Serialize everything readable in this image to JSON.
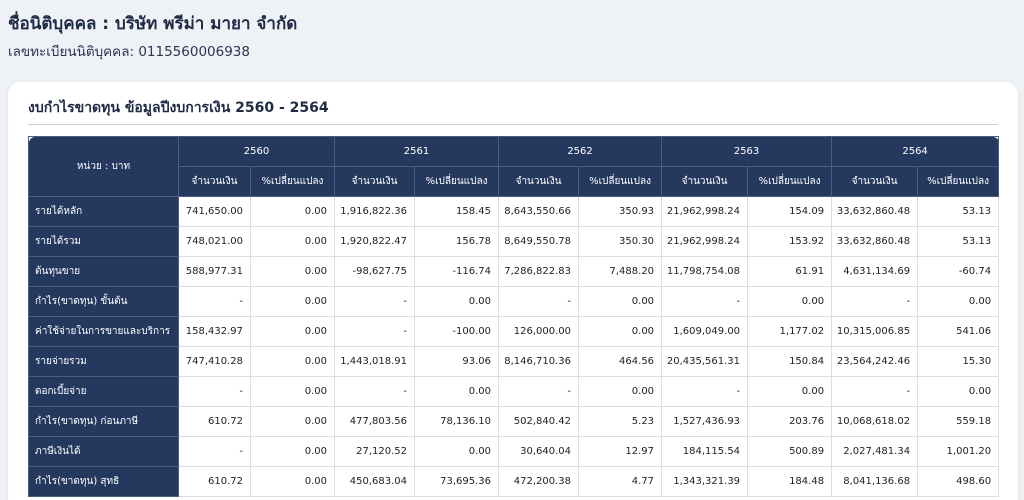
{
  "header": {
    "company_label": "ชื่อนิติบุคคล : บริษัท พรีม่า มายา จำกัด",
    "reg_label": "เลขทะเบียนนิติบุคคล: 0115560006938"
  },
  "card": {
    "title": "งบกำไรขาดทุน ข้อมูลปีงบการเงิน 2560 - 2564"
  },
  "table": {
    "unit_label": "หน่วย : บาท",
    "years": [
      "2560",
      "2561",
      "2562",
      "2563",
      "2564"
    ],
    "amount_label": "จำนวนเงิน",
    "change_label": "%เปลี่ยนแปลง",
    "rows": [
      {
        "label": "รายได้หลัก",
        "cells": [
          "741,650.00",
          "0.00",
          "1,916,822.36",
          "158.45",
          "8,643,550.66",
          "350.93",
          "21,962,998.24",
          "154.09",
          "33,632,860.48",
          "53.13"
        ]
      },
      {
        "label": "รายได้รวม",
        "cells": [
          "748,021.00",
          "0.00",
          "1,920,822.47",
          "156.78",
          "8,649,550.78",
          "350.30",
          "21,962,998.24",
          "153.92",
          "33,632,860.48",
          "53.13"
        ]
      },
      {
        "label": "ต้นทุนขาย",
        "cells": [
          "588,977.31",
          "0.00",
          "-98,627.75",
          "-116.74",
          "7,286,822.83",
          "7,488.20",
          "11,798,754.08",
          "61.91",
          "4,631,134.69",
          "-60.74"
        ]
      },
      {
        "label": "กำไร(ขาดทุน) ขั้นต้น",
        "cells": [
          "-",
          "0.00",
          "-",
          "0.00",
          "-",
          "0.00",
          "-",
          "0.00",
          "-",
          "0.00"
        ]
      },
      {
        "label": "ค่าใช้จ่ายในการขายและบริการ",
        "cells": [
          "158,432.97",
          "0.00",
          "-",
          "-100.00",
          "126,000.00",
          "0.00",
          "1,609,049.00",
          "1,177.02",
          "10,315,006.85",
          "541.06"
        ]
      },
      {
        "label": "รายจ่ายรวม",
        "cells": [
          "747,410.28",
          "0.00",
          "1,443,018.91",
          "93.06",
          "8,146,710.36",
          "464.56",
          "20,435,561.31",
          "150.84",
          "23,564,242.46",
          "15.30"
        ]
      },
      {
        "label": "ดอกเบี้ยจ่าย",
        "cells": [
          "-",
          "0.00",
          "-",
          "0.00",
          "-",
          "0.00",
          "-",
          "0.00",
          "-",
          "0.00"
        ]
      },
      {
        "label": "กำไร(ขาดทุน) ก่อนภาษี",
        "cells": [
          "610.72",
          "0.00",
          "477,803.56",
          "78,136.10",
          "502,840.42",
          "5.23",
          "1,527,436.93",
          "203.76",
          "10,068,618.02",
          "559.18"
        ]
      },
      {
        "label": "ภาษีเงินได้",
        "cells": [
          "-",
          "0.00",
          "27,120.52",
          "0.00",
          "30,640.04",
          "12.97",
          "184,115.54",
          "500.89",
          "2,027,481.34",
          "1,001.20"
        ]
      },
      {
        "label": "กำไร(ขาดทุน) สุทธิ",
        "cells": [
          "610.72",
          "0.00",
          "450,683.04",
          "73,695.36",
          "472,200.38",
          "4.77",
          "1,343,321.39",
          "184.48",
          "8,041,136.68",
          "498.60"
        ]
      }
    ]
  }
}
